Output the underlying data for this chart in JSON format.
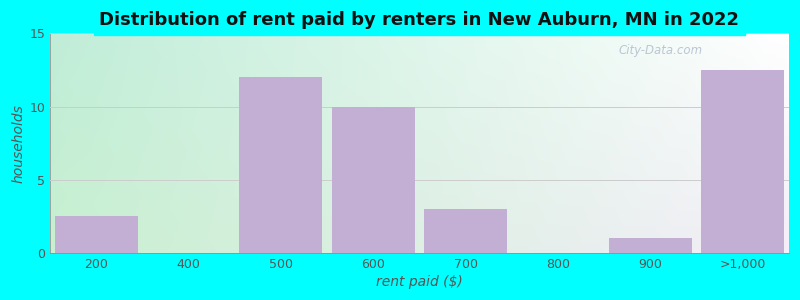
{
  "title": "Distribution of rent paid by renters in New Auburn, MN in 2022",
  "xlabel": "rent paid ($)",
  "ylabel": "households",
  "categories": [
    "200",
    "400",
    "500",
    "600",
    "700",
    "800",
    "900",
    ">1,000"
  ],
  "values": [
    2.5,
    0,
    12,
    10,
    3,
    0,
    1,
    12.5
  ],
  "bar_color": "#c4afd4",
  "ylim": [
    0,
    15
  ],
  "yticks": [
    0,
    5,
    10,
    15
  ],
  "outer_bg": "#00ffff",
  "grid_color": "#cccccc",
  "title_fontsize": 13,
  "axis_label_fontsize": 10,
  "tick_fontsize": 9,
  "watermark": "City-Data.com",
  "title_color": "#111111",
  "label_color": "#555555"
}
